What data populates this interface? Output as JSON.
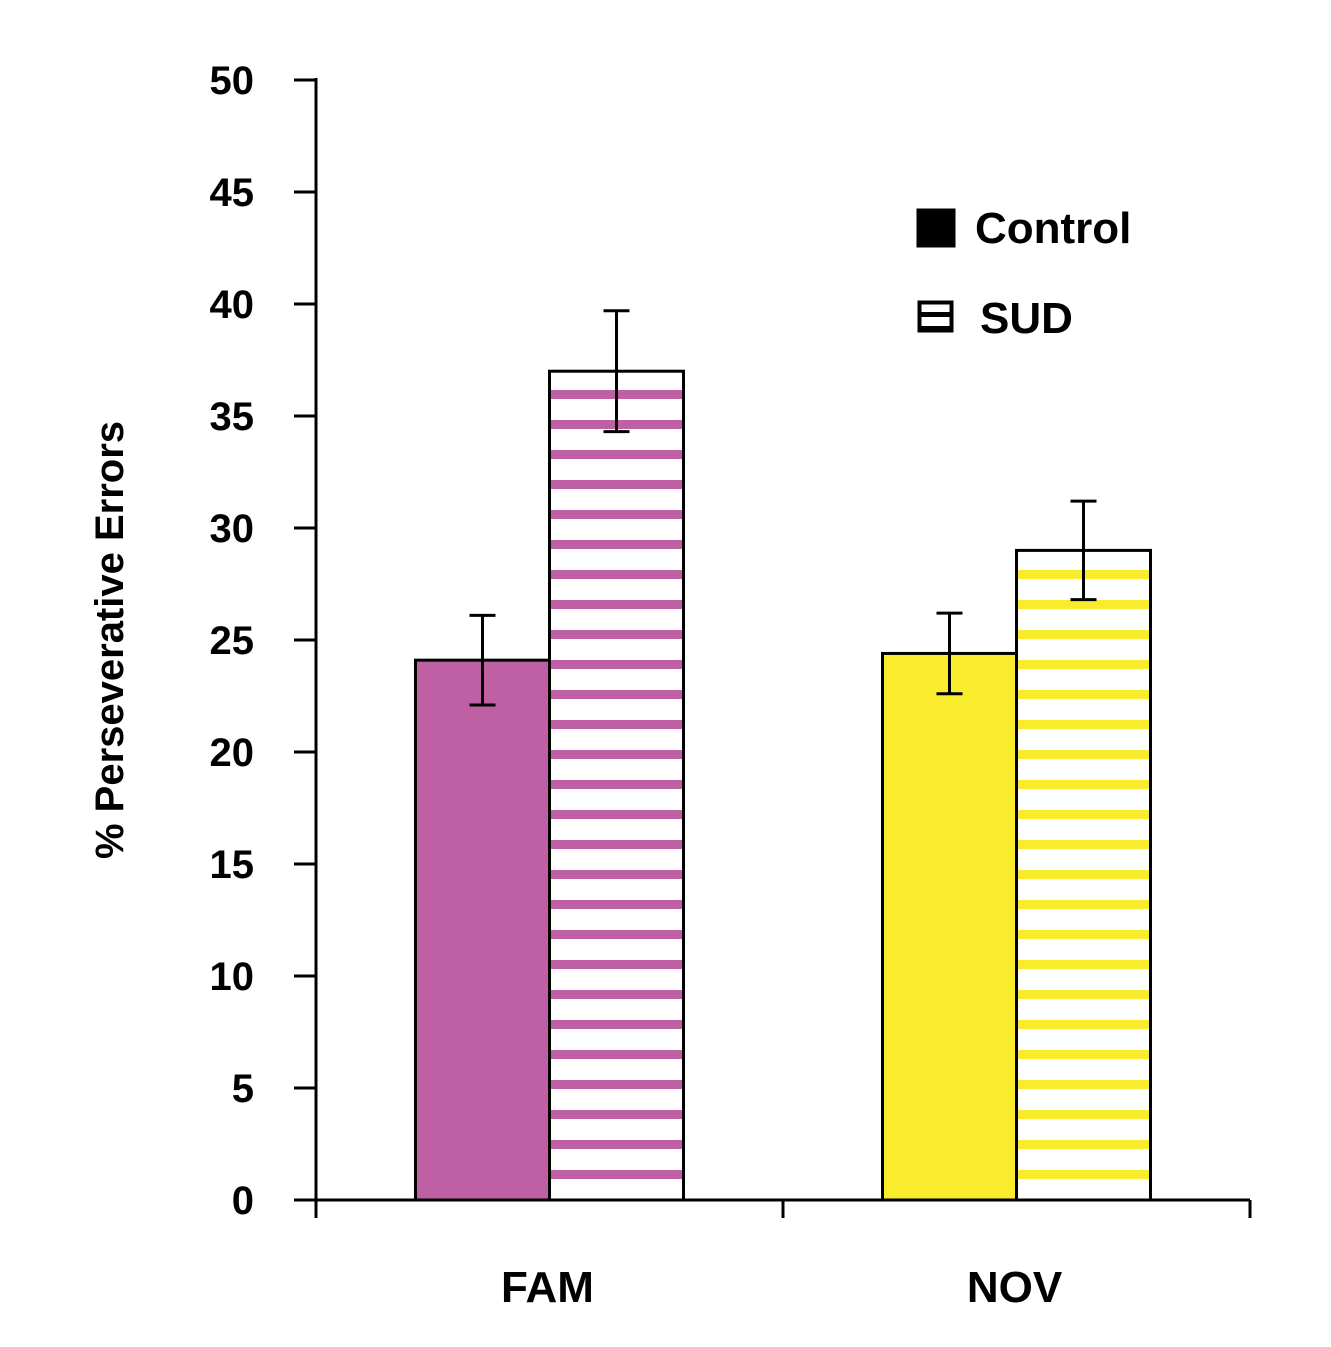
{
  "chart_data": {
    "type": "bar",
    "categories": [
      "FAM",
      "NOV"
    ],
    "series": [
      {
        "name": "Control",
        "values": [
          24.1,
          24.4
        ],
        "errors": [
          2.0,
          1.8
        ]
      },
      {
        "name": "SUD",
        "values": [
          37.0,
          29.0
        ],
        "errors": [
          2.7,
          2.2
        ]
      }
    ],
    "category_colors": [
      "#c060a4",
      "#f8ec2c"
    ],
    "title": "",
    "xlabel": "",
    "ylabel": "% Perseverative Errors",
    "ylim": [
      0,
      50
    ],
    "yticks": [
      0,
      5,
      10,
      15,
      20,
      25,
      30,
      35,
      40,
      45,
      50
    ],
    "grid": false,
    "legend": {
      "position": "top-right",
      "entries": [
        "Control",
        "SUD"
      ]
    }
  }
}
